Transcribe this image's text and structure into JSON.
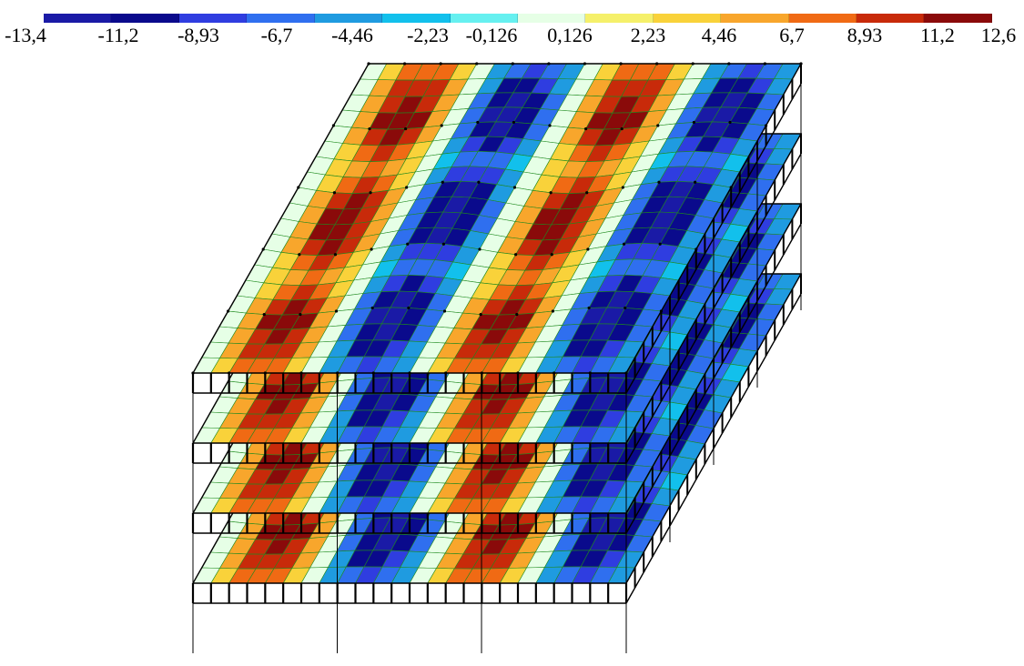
{
  "legend": {
    "colors": [
      "#1a1aa6",
      "#0a0a8c",
      "#2f3de0",
      "#2f6fef",
      "#1f9be0",
      "#12c0ec",
      "#66f0f0",
      "#e6ffe6",
      "#f5f06a",
      "#f9d23a",
      "#f8a62c",
      "#f06a14",
      "#c82a0a",
      "#8a0a0a"
    ],
    "ticks": [
      "-13,4",
      "-11,2",
      "-8,93",
      "-6,7",
      "-4,46",
      "-2,23",
      "-0,126",
      "0,126",
      "2,23",
      "4,46",
      "6,7",
      "8,93",
      "11,2",
      "12,6"
    ]
  },
  "model": {
    "floors": 4,
    "field_min": -13.4,
    "field_max": 12.6,
    "mesh_color": "#1e8a1e",
    "frame_color": "#000000"
  }
}
